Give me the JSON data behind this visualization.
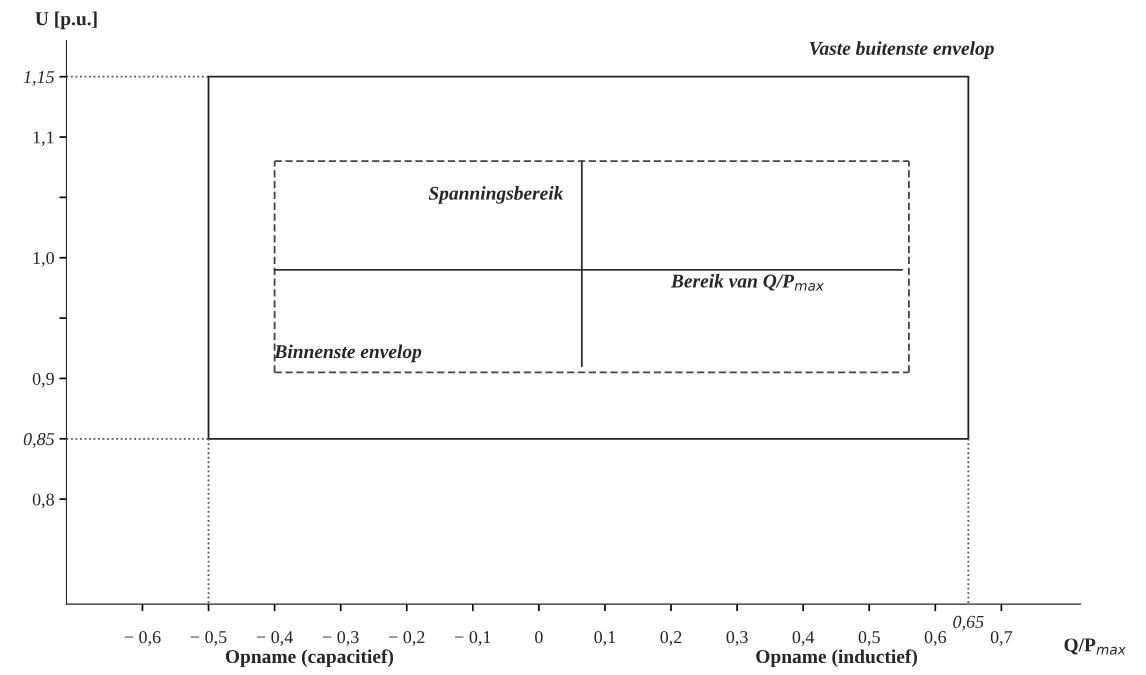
{
  "chart_data": {
    "type": "line",
    "xlabel": "Q/P$_{max}$",
    "ylabel": "U [p.u.]",
    "xlim": [
      -0.715,
      0.82
    ],
    "ylim": [
      0.713,
      1.18
    ],
    "xticks": [
      {
        "value": -0.6,
        "label": "− 0,6"
      },
      {
        "value": -0.5,
        "label": "− 0,5"
      },
      {
        "value": -0.4,
        "label": "− 0,4"
      },
      {
        "value": -0.3,
        "label": "− 0,3"
      },
      {
        "value": -0.2,
        "label": "− 0,2"
      },
      {
        "value": -0.1,
        "label": "− 0,1"
      },
      0,
      {
        "value": 0.1,
        "label": "0,1"
      },
      {
        "value": 0.2,
        "label": "0,2"
      },
      {
        "value": 0.3,
        "label": "0,3"
      },
      {
        "value": 0.4,
        "label": "0,4"
      },
      {
        "value": 0.5,
        "label": "0,5"
      },
      {
        "value": 0.6,
        "label": "0,6"
      },
      {
        "value": 0.7,
        "label": "0,7"
      }
    ],
    "yticks": [
      {
        "value": 0.8,
        "label": "0,8"
      },
      {
        "value": 0.85,
        "label": "0,85"
      },
      {
        "value": 0.9,
        "label": "0,9"
      },
      {
        "value": 0.95,
        "label": null
      },
      {
        "value": 1.0,
        "label": "1,0"
      },
      {
        "value": 1.05,
        "label": null
      },
      {
        "value": 1.1,
        "label": "1,1"
      },
      {
        "value": 1.15,
        "label": "1,15"
      }
    ],
    "grid": false,
    "series": [
      {
        "color": "#222222",
        "line_style": "solid",
        "x": [
          -0.5,
          0.65
        ],
        "values": [
          0.85,
          0.85
        ]
      },
      {
        "color": "#222222",
        "line_style": "solid",
        "x": [
          -0.5,
          0.65
        ],
        "values": [
          1.15,
          1.15
        ]
      },
      {
        "color": "#222222",
        "line_style": "solid",
        "x": [
          -0.5,
          -0.5
        ],
        "values": [
          0.85,
          1.15
        ]
      },
      {
        "color": "#222222",
        "line_style": "solid",
        "x": [
          0.65,
          0.65
        ],
        "values": [
          0.85,
          1.15
        ]
      },
      {
        "color": "#444444",
        "line_style": "dashed",
        "x": [
          -0.4,
          0.56
        ],
        "values": [
          0.905,
          0.905
        ]
      },
      {
        "color": "#444444",
        "line_style": "dashed",
        "x": [
          -0.4,
          0.56
        ],
        "values": [
          1.08,
          1.08
        ]
      },
      {
        "color": "#444444",
        "line_style": "dashed",
        "x": [
          -0.4,
          -0.4
        ],
        "values": [
          0.905,
          1.08
        ]
      },
      {
        "color": "#444444",
        "line_style": "dashed",
        "x": [
          0.56,
          0.56
        ],
        "values": [
          0.905,
          1.08
        ]
      },
      {
        "color": "#555555",
        "line_style": "dotted",
        "x": [
          -0.715,
          -0.5
        ],
        "values": [
          1.15,
          1.15
        ]
      },
      {
        "color": "#555555",
        "line_style": "dotted",
        "x": [
          -0.715,
          -0.5
        ],
        "values": [
          0.85,
          0.85
        ]
      },
      {
        "color": "#555555",
        "line_style": "dotted",
        "x": [
          -0.5,
          -0.5
        ],
        "values": [
          0.85,
          0.713
        ]
      },
      {
        "color": "#555555",
        "line_style": "dotted",
        "x": [
          0.65,
          0.65
        ],
        "values": [
          0.85,
          0.713
        ]
      },
      {
        "color": "#333333",
        "line_style": "solid",
        "x": [
          -0.4,
          0.55
        ],
        "values": [
          0.99,
          0.99
        ]
      },
      {
        "color": "#333333",
        "line_style": "solid",
        "x": [
          0.065,
          0.065
        ],
        "values": [
          0.91,
          1.08
        ]
      }
    ],
    "annotations": [
      "Vaste buitenste envelop",
      "Spanningsbereik",
      "Bereik van Q/P$_{max}$",
      "Binnenste envelop",
      "Opname (capacitief)",
      "Opname (inductief)",
      {
        "text": "0,65",
        "x": 0.65,
        "y": 0.713
      }
    ]
  }
}
